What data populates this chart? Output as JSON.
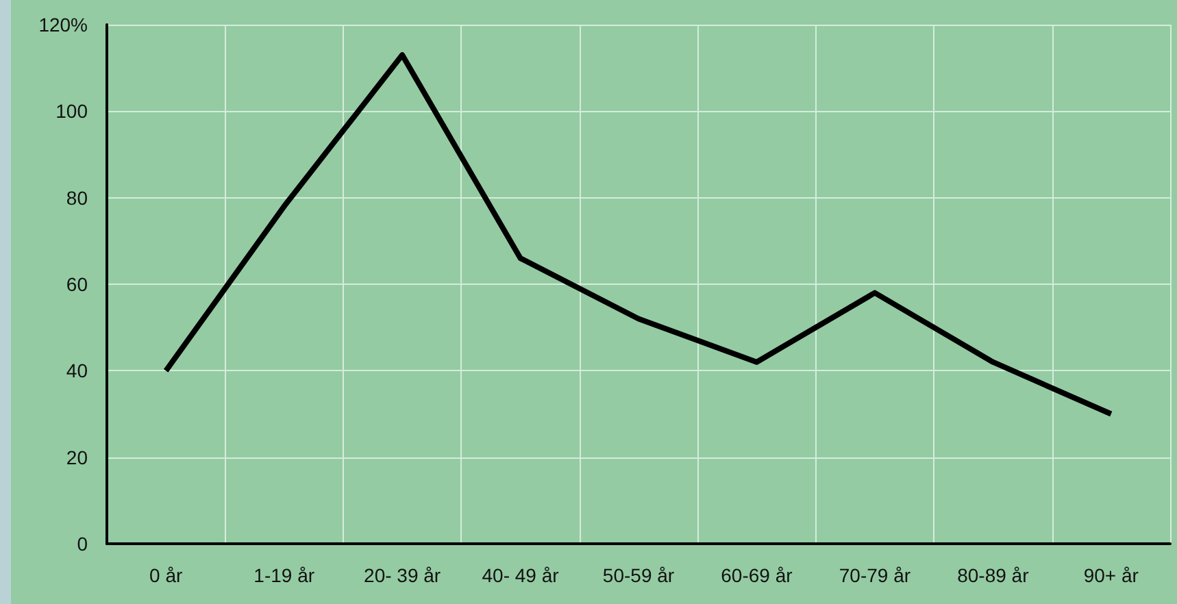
{
  "chart_data": {
    "type": "line",
    "categories": [
      "0 år",
      "1-19 år",
      "20- 39 år",
      "40- 49 år",
      "50-59 år",
      "60-69 år",
      "70-79 år",
      "80-89 år",
      "90+ år"
    ],
    "series": [
      {
        "color": "#000000",
        "values": [
          40,
          78,
          113,
          66,
          52,
          42,
          58,
          42,
          30
        ]
      }
    ],
    "ylim": [
      0,
      120
    ],
    "yticks": [
      0,
      20,
      40,
      60,
      80,
      100,
      {
        "value": 120,
        "label": "120%"
      }
    ],
    "grid": true,
    "marker": "none",
    "line_style": "solid"
  }
}
